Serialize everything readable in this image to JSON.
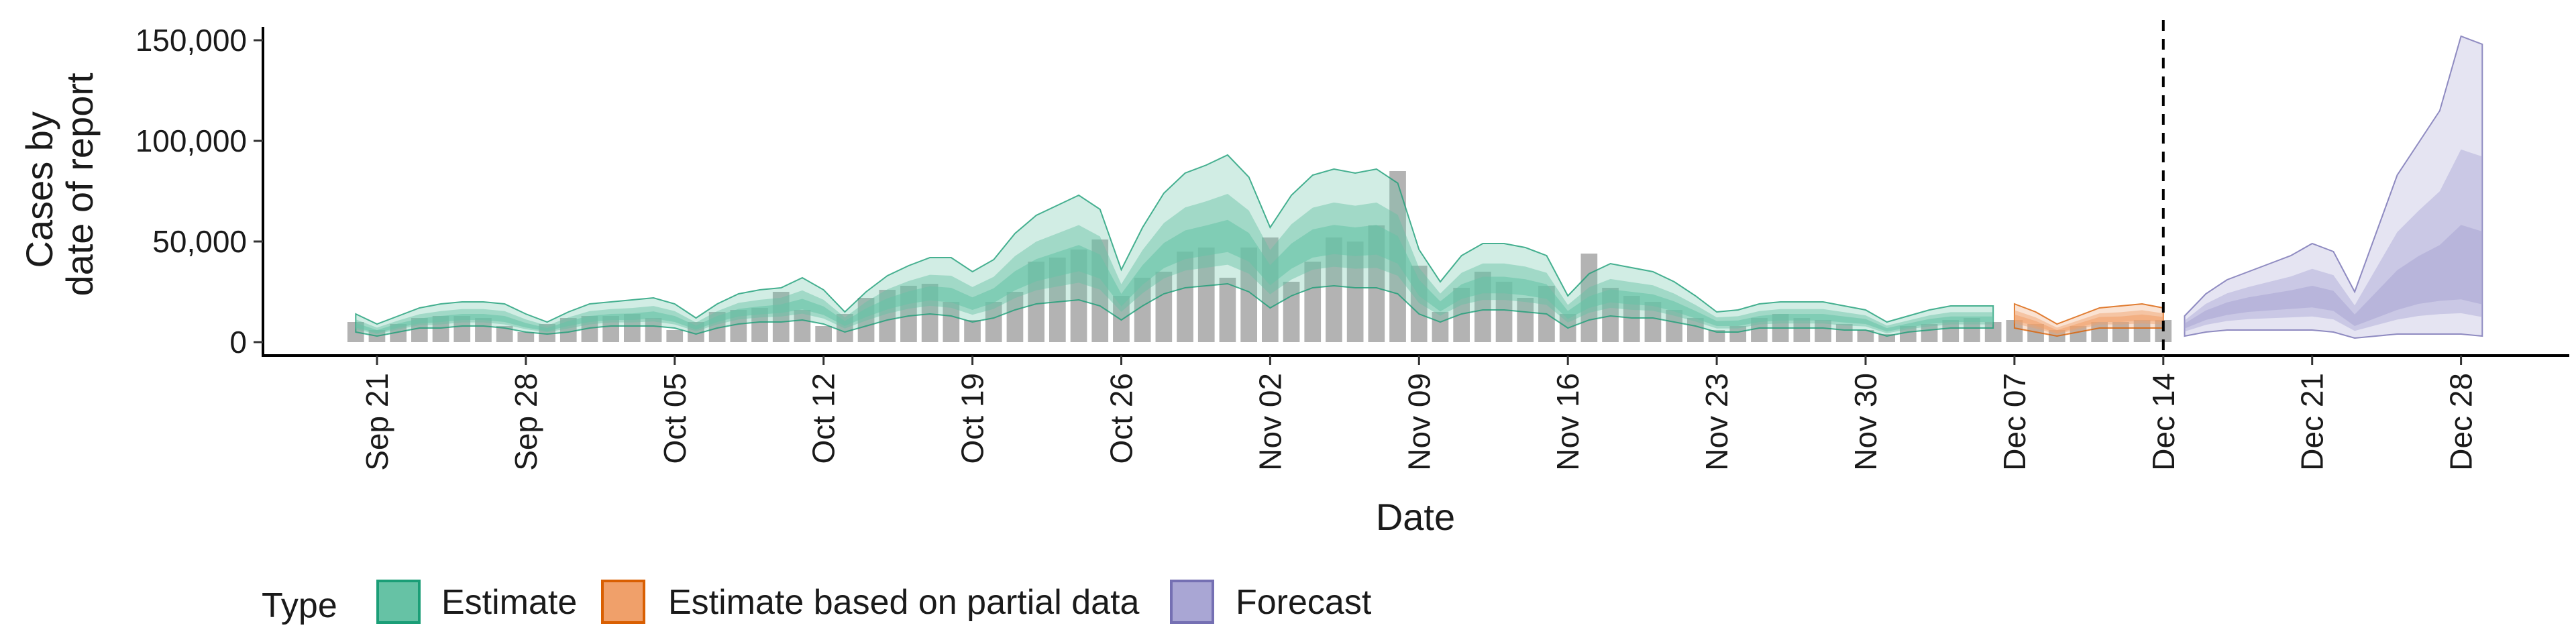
{
  "chart_data": {
    "type": "area",
    "xlabel": "Date",
    "ylabel_lines": [
      "Cases by",
      "date of report"
    ],
    "y_ticks": [
      0,
      50000,
      100000,
      150000
    ],
    "y_tick_labels": [
      "0",
      "50,000",
      "100,000",
      "150,000"
    ],
    "ylim": [
      -6000,
      160000
    ],
    "x_tick_labels": [
      "Sep 21",
      "Sep 28",
      "Oct 05",
      "Oct 12",
      "Oct 19",
      "Oct 26",
      "Nov 02",
      "Nov 09",
      "Nov 16",
      "Nov 23",
      "Nov 30",
      "Dec 07",
      "Dec 14",
      "Dec 21",
      "Dec 28"
    ],
    "x_start_date": "Sep 21",
    "x_range": [
      -5,
      108
    ],
    "vline_day": 84,
    "grid": false,
    "legend": {
      "title": "Type",
      "placement": "bottom-left",
      "entries": [
        {
          "label": "Estimate",
          "fill": "#66c2a5",
          "stroke": "#1b9e77"
        },
        {
          "label": "Estimate based on partial data",
          "fill": "#f0a06a",
          "stroke": "#d95f02"
        },
        {
          "label": "Forecast",
          "fill": "#a9a6d4",
          "stroke": "#7570b3"
        }
      ]
    },
    "observed_bar_color": "#a6a6a6",
    "observed_start_day": -1,
    "observed": [
      10000,
      6000,
      9000,
      12000,
      13000,
      13000,
      12000,
      8000,
      5000,
      9000,
      12000,
      13000,
      13000,
      14000,
      12000,
      6000,
      10000,
      15000,
      16000,
      17000,
      25000,
      16000,
      8000,
      14000,
      22000,
      26000,
      28000,
      29000,
      20000,
      11000,
      20000,
      25000,
      40000,
      42000,
      46000,
      51000,
      23000,
      32000,
      35000,
      45000,
      47000,
      32000,
      47000,
      52000,
      30000,
      40000,
      52000,
      50000,
      58000,
      85000,
      38000,
      15000,
      27000,
      35000,
      30000,
      22000,
      28000,
      14000,
      44000,
      27000,
      23000,
      20000,
      16000,
      12000,
      6000,
      8000,
      12000,
      14000,
      12000,
      11000,
      9000,
      6000,
      4000,
      8000,
      9000,
      11000,
      12000,
      10000,
      11000,
      9000,
      6000,
      8000,
      10000,
      10000,
      11000,
      11000
    ],
    "series": [
      {
        "name": "Estimate",
        "start_day": -1,
        "median": [
          8000,
          5000,
          8000,
          10000,
          11000,
          12000,
          12000,
          11000,
          8000,
          6000,
          9000,
          11000,
          12000,
          12000,
          13000,
          11000,
          7000,
          11000,
          14000,
          15000,
          16000,
          18000,
          15000,
          9000,
          14000,
          18000,
          21000,
          23000,
          22000,
          18000,
          22000,
          29000,
          34000,
          37000,
          40000,
          36000,
          20000,
          32000,
          41000,
          46000,
          48000,
          50000,
          45000,
          32000,
          41000,
          47000,
          49000,
          48000,
          49000,
          44000,
          26000,
          17000,
          24000,
          27000,
          27000,
          26000,
          24000,
          13000,
          19000,
          22000,
          21000,
          20000,
          17000,
          13000,
          9000,
          9000,
          11000,
          12000,
          12000,
          12000,
          11000,
          10000,
          6000,
          8000,
          10000,
          11000,
          11000,
          11000
        ],
        "lo90": [
          5000,
          3000,
          5000,
          7000,
          7000,
          8000,
          8000,
          7000,
          5000,
          4000,
          5000,
          7000,
          8000,
          8000,
          8000,
          7000,
          4000,
          7000,
          9000,
          10000,
          10000,
          11000,
          9000,
          5000,
          8000,
          11000,
          13000,
          14000,
          13000,
          10000,
          12000,
          16000,
          19000,
          20000,
          21000,
          18000,
          11000,
          18000,
          24000,
          27000,
          28000,
          29000,
          25000,
          17000,
          23000,
          27000,
          28000,
          27000,
          27000,
          24000,
          14000,
          10000,
          14000,
          16000,
          16000,
          15000,
          14000,
          7000,
          11000,
          13000,
          12000,
          12000,
          10000,
          8000,
          5000,
          5000,
          7000,
          7000,
          7000,
          7000,
          6000,
          6000,
          3000,
          5000,
          6000,
          7000,
          7000,
          7000
        ],
        "hi90": [
          14000,
          9000,
          13000,
          17000,
          19000,
          20000,
          20000,
          19000,
          14000,
          10000,
          15000,
          19000,
          20000,
          21000,
          22000,
          19000,
          12000,
          19000,
          24000,
          26000,
          27000,
          32000,
          26000,
          15000,
          25000,
          33000,
          38000,
          42000,
          42000,
          35000,
          41000,
          54000,
          63000,
          68000,
          73000,
          66000,
          36000,
          57000,
          74000,
          84000,
          88000,
          93000,
          82000,
          57000,
          73000,
          83000,
          86000,
          84000,
          86000,
          79000,
          46000,
          30000,
          43000,
          49000,
          49000,
          47000,
          43000,
          23000,
          34000,
          39000,
          37000,
          35000,
          30000,
          23000,
          15000,
          16000,
          19000,
          20000,
          20000,
          20000,
          18000,
          16000,
          10000,
          13000,
          16000,
          18000,
          18000,
          18000
        ]
      },
      {
        "name": "Estimate based on partial data",
        "start_day": 77,
        "median": [
          12000,
          9000,
          5000,
          8000,
          11000,
          11000,
          12000,
          11000
        ],
        "lo90": [
          7000,
          5000,
          3000,
          5000,
          7000,
          7000,
          7000,
          7000
        ],
        "hi90": [
          19000,
          15000,
          9000,
          13000,
          17000,
          18000,
          19000,
          17000
        ]
      },
      {
        "name": "Forecast",
        "start_day": 85,
        "median": [
          8000,
          13000,
          16000,
          18000,
          19000,
          20000,
          21000,
          19000,
          10000,
          15000,
          20000,
          24000,
          26000,
          27000,
          24000
        ],
        "lo90": [
          3000,
          5000,
          6000,
          6000,
          6000,
          6000,
          6000,
          5000,
          2000,
          3000,
          4000,
          4000,
          4000,
          4000,
          3000
        ],
        "hi90": [
          13000,
          24000,
          31000,
          35000,
          39000,
          43000,
          49000,
          45000,
          25000,
          54000,
          83000,
          99000,
          115000,
          152000,
          148000
        ]
      }
    ]
  }
}
